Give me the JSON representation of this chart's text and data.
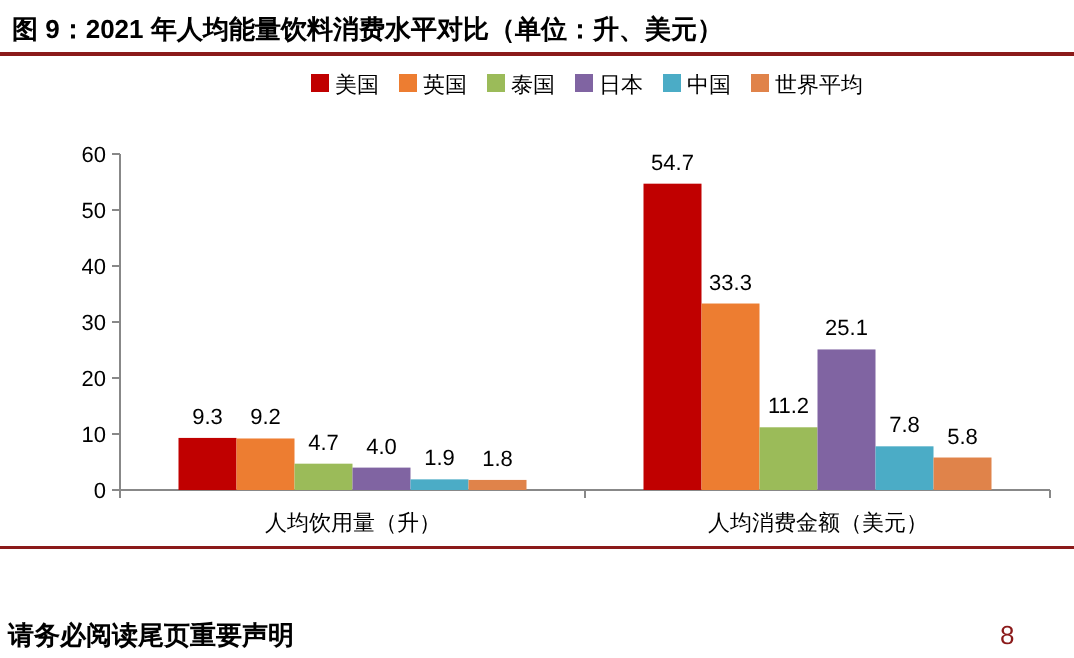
{
  "chart_data": {
    "type": "bar",
    "title": "图 9：2021 年人均能量饮料消费水平对比（单位：升、美元）",
    "categories": [
      "人均饮用量（升）",
      "人均消费金额（美元）"
    ],
    "series": [
      {
        "name": "美国",
        "color": "#c00000",
        "values": [
          9.3,
          54.7
        ],
        "value_labels": [
          "9.3",
          "54.7"
        ]
      },
      {
        "name": "英国",
        "color": "#ed7d31",
        "values": [
          9.2,
          33.3
        ],
        "value_labels": [
          "9.2",
          "33.3"
        ]
      },
      {
        "name": "泰国",
        "color": "#9bbb59",
        "values": [
          4.7,
          11.2
        ],
        "value_labels": [
          "4.7",
          "11.2"
        ]
      },
      {
        "name": "日本",
        "color": "#8064a2",
        "values": [
          4.0,
          25.1
        ],
        "value_labels": [
          "4.0",
          "25.1"
        ]
      },
      {
        "name": "中国",
        "color": "#4bacc6",
        "values": [
          1.9,
          7.8
        ],
        "value_labels": [
          "1.9",
          "7.8"
        ]
      },
      {
        "name": "世界平均",
        "color": "#e0834a",
        "values": [
          1.8,
          5.8
        ],
        "value_labels": [
          "1.8",
          "5.8"
        ]
      }
    ],
    "ylim": [
      0,
      60
    ],
    "yticks": [
      0,
      10,
      20,
      30,
      40,
      50,
      60
    ],
    "legend": "top",
    "grid": false,
    "annotations": [
      "请务必阅读尾页重要声明",
      "8"
    ]
  }
}
